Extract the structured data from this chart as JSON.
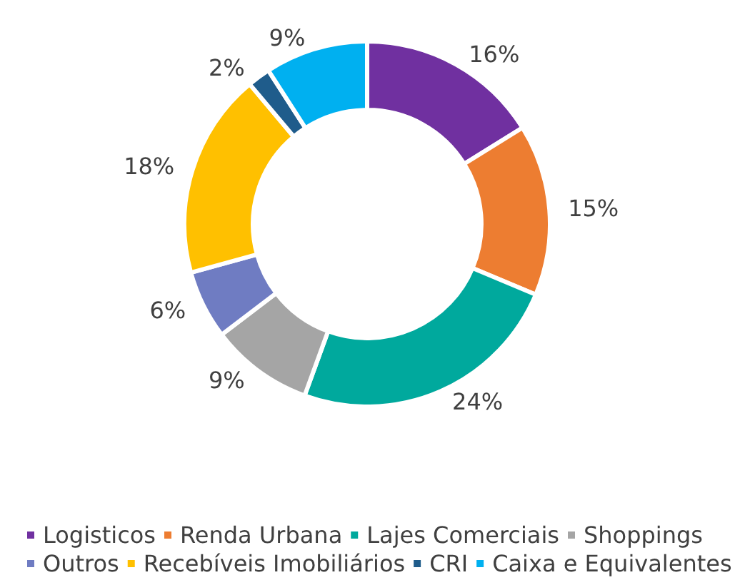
{
  "chart_data": {
    "type": "donut",
    "categories": [
      "Logisticos",
      "Renda Urbana",
      "Lajes Comerciais",
      "Shoppings",
      "Outros",
      "Recebíveis Imobiliários",
      "CRI",
      "Caixa e Equivalentes"
    ],
    "values": [
      16,
      15,
      24,
      9,
      6,
      18,
      2,
      9
    ],
    "value_labels": [
      "16%",
      "15%",
      "24%",
      "9%",
      "6%",
      "18%",
      "2%",
      "9%"
    ],
    "colors": [
      "#7030a0",
      "#ed7d31",
      "#00a99d",
      "#a5a5a5",
      "#6f7cc2",
      "#ffc000",
      "#1f5c8b",
      "#00b0f0"
    ],
    "legend": "bottom"
  }
}
